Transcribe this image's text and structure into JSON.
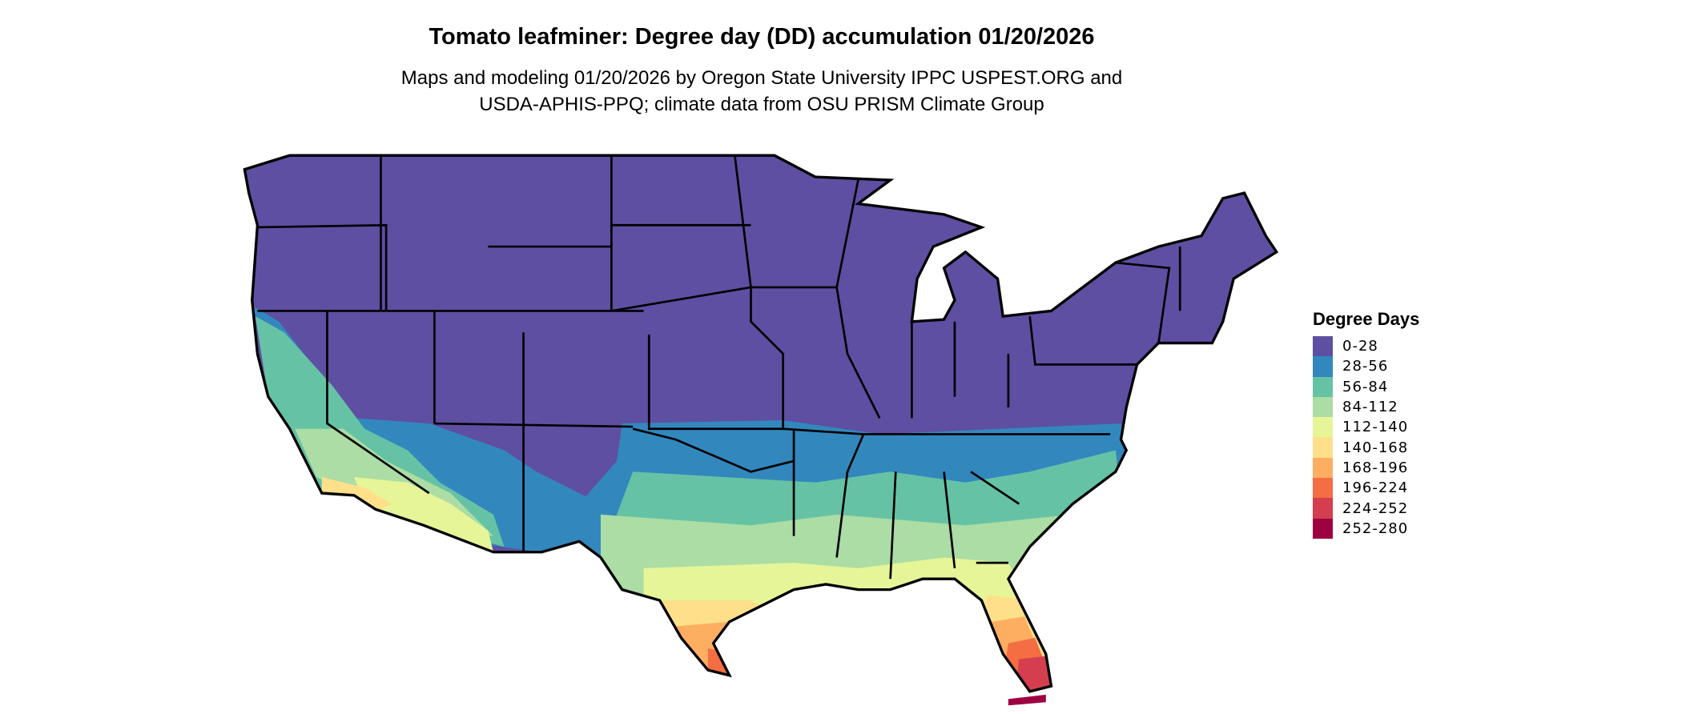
{
  "title": "Tomato leafminer: Degree day (DD) accumulation 01/20/2026",
  "subtitle": [
    "Maps and modeling 01/20/2026 by Oregon State University IPPC USPEST.ORG and",
    "USDA-APHIS-PPQ; climate data from OSU PRISM Climate Group"
  ],
  "legend": {
    "title": "Degree Days",
    "bins": [
      {
        "label": "0-28",
        "color": "#5E4FA2"
      },
      {
        "label": "28-56",
        "color": "#3288BD"
      },
      {
        "label": "56-84",
        "color": "#66C2A5"
      },
      {
        "label": "84-112",
        "color": "#ABDDA4"
      },
      {
        "label": "112-140",
        "color": "#E6F598"
      },
      {
        "label": "140-168",
        "color": "#FEE08B"
      },
      {
        "label": "168-196",
        "color": "#FDAE61"
      },
      {
        "label": "196-224",
        "color": "#F46D43"
      },
      {
        "label": "224-252",
        "color": "#D53E4F"
      },
      {
        "label": "252-280",
        "color": "#9E0142"
      }
    ]
  }
}
